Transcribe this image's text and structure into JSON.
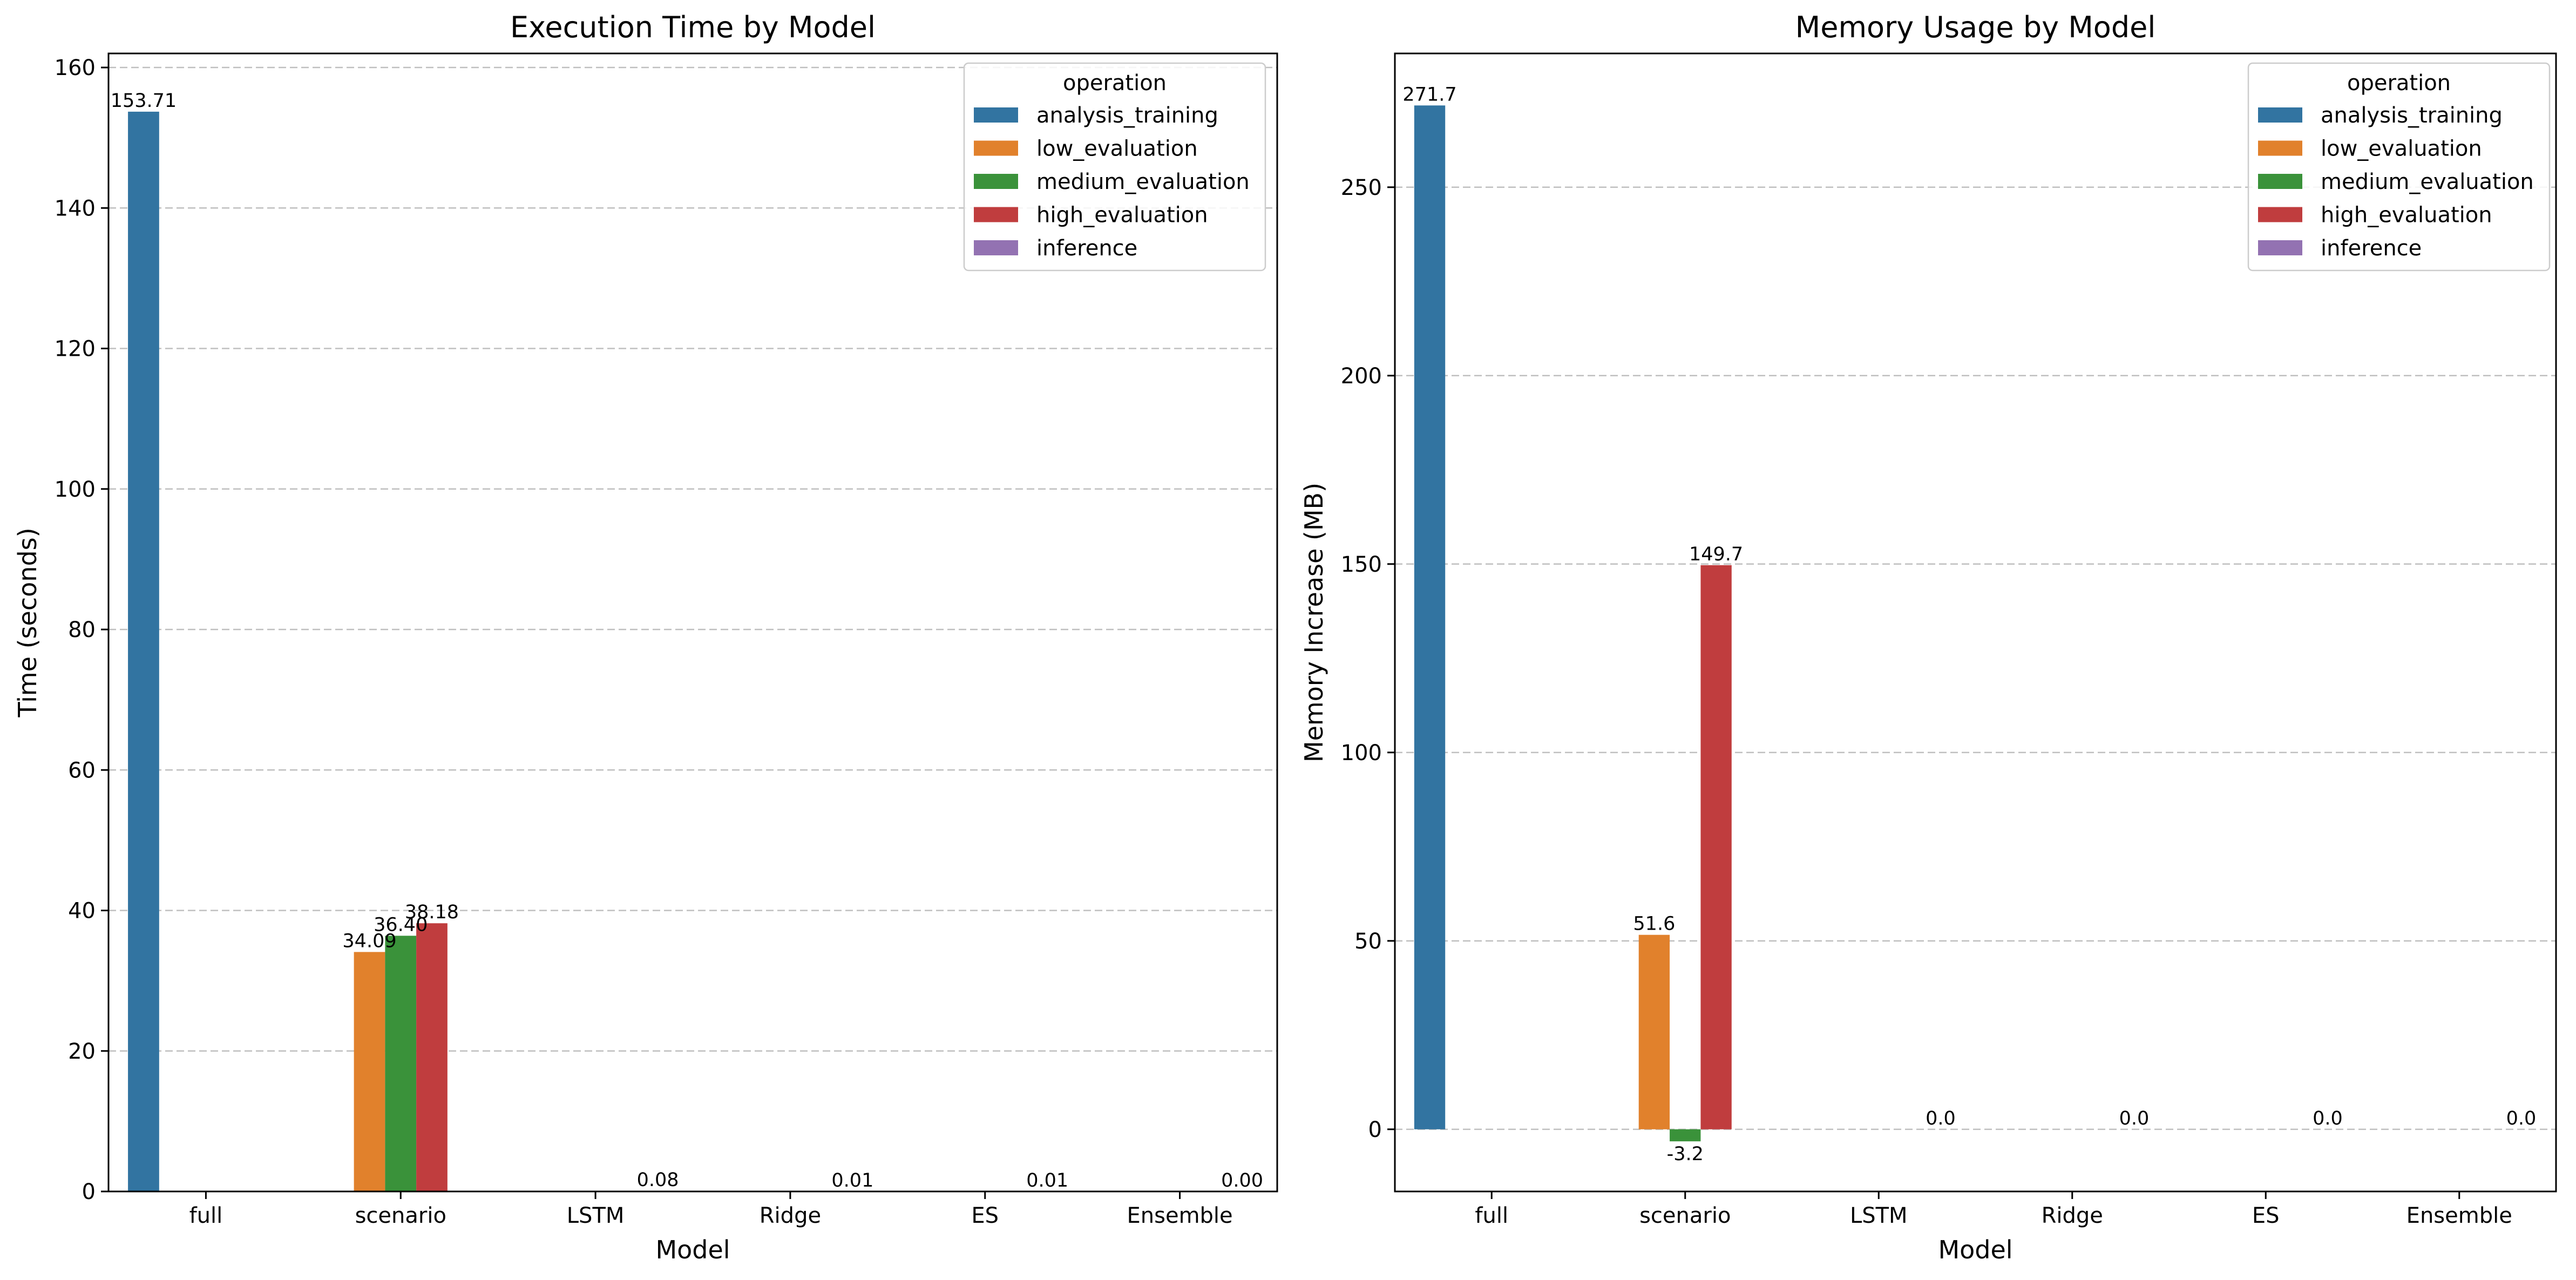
{
  "chart_data": [
    {
      "type": "bar",
      "title": "Execution Time by Model",
      "xlabel": "Model",
      "ylabel": "Time (seconds)",
      "ylim": [
        0,
        162
      ],
      "yticks": [
        "0",
        "20",
        "40",
        "60",
        "80",
        "100",
        "120",
        "140",
        "160"
      ],
      "grid": "horizontal dashed",
      "legend": {
        "title": "operation",
        "placement": "top-right"
      },
      "categories": [
        "full",
        "scenario",
        "LSTM",
        "Ridge",
        "ES",
        "Ensemble"
      ],
      "series": [
        {
          "name": "analysis_training",
          "color": "#3274a1",
          "values": [
            153.71,
            null,
            null,
            null,
            null,
            null
          ]
        },
        {
          "name": "low_evaluation",
          "color": "#e1812c",
          "values": [
            null,
            34.09,
            null,
            null,
            null,
            null
          ]
        },
        {
          "name": "medium_evaluation",
          "color": "#3a923a",
          "values": [
            null,
            36.4,
            null,
            null,
            null,
            null
          ]
        },
        {
          "name": "high_evaluation",
          "color": "#c03d3e",
          "values": [
            null,
            38.18,
            null,
            null,
            null,
            null
          ]
        },
        {
          "name": "inference",
          "color": "#9372b2",
          "values": [
            null,
            null,
            0.08,
            0.01,
            0.01,
            0.0
          ]
        }
      ],
      "data_labels": [
        {
          "category": "full",
          "series": "analysis_training",
          "text": "153.71"
        },
        {
          "category": "scenario",
          "series": "low_evaluation",
          "text": "34.09"
        },
        {
          "category": "scenario",
          "series": "medium_evaluation",
          "text": "36.40"
        },
        {
          "category": "scenario",
          "series": "high_evaluation",
          "text": "38.18"
        },
        {
          "category": "LSTM",
          "series": "inference",
          "text": "0.08"
        },
        {
          "category": "Ridge",
          "series": "inference",
          "text": "0.01"
        },
        {
          "category": "ES",
          "series": "inference",
          "text": "0.01"
        },
        {
          "category": "Ensemble",
          "series": "inference",
          "text": "0.00"
        }
      ]
    },
    {
      "type": "bar",
      "title": "Memory Usage by Model",
      "xlabel": "Model",
      "ylabel": "Memory Increase (MB)",
      "ylim": [
        -16.5,
        285.5
      ],
      "yticks": [
        "0",
        "50",
        "100",
        "150",
        "200",
        "250"
      ],
      "grid": "horizontal dashed",
      "legend": {
        "title": "operation",
        "placement": "top-right"
      },
      "categories": [
        "full",
        "scenario",
        "LSTM",
        "Ridge",
        "ES",
        "Ensemble"
      ],
      "series": [
        {
          "name": "analysis_training",
          "color": "#3274a1",
          "values": [
            271.7,
            null,
            null,
            null,
            null,
            null
          ]
        },
        {
          "name": "low_evaluation",
          "color": "#e1812c",
          "values": [
            null,
            51.6,
            null,
            null,
            null,
            null
          ]
        },
        {
          "name": "medium_evaluation",
          "color": "#3a923a",
          "values": [
            null,
            -3.2,
            null,
            null,
            null,
            null
          ]
        },
        {
          "name": "high_evaluation",
          "color": "#c03d3e",
          "values": [
            null,
            149.7,
            null,
            null,
            null,
            null
          ]
        },
        {
          "name": "inference",
          "color": "#9372b2",
          "values": [
            null,
            null,
            0.0,
            0.0,
            0.0,
            0.0
          ]
        }
      ],
      "data_labels": [
        {
          "category": "full",
          "series": "analysis_training",
          "text": "271.7"
        },
        {
          "category": "scenario",
          "series": "low_evaluation",
          "text": "51.6"
        },
        {
          "category": "scenario",
          "series": "medium_evaluation",
          "text": "-3.2"
        },
        {
          "category": "scenario",
          "series": "high_evaluation",
          "text": "149.7"
        },
        {
          "category": "LSTM",
          "series": "inference",
          "text": "0.0"
        },
        {
          "category": "Ridge",
          "series": "inference",
          "text": "0.0"
        },
        {
          "category": "ES",
          "series": "inference",
          "text": "0.0"
        },
        {
          "category": "Ensemble",
          "series": "inference",
          "text": "0.0"
        }
      ]
    }
  ]
}
